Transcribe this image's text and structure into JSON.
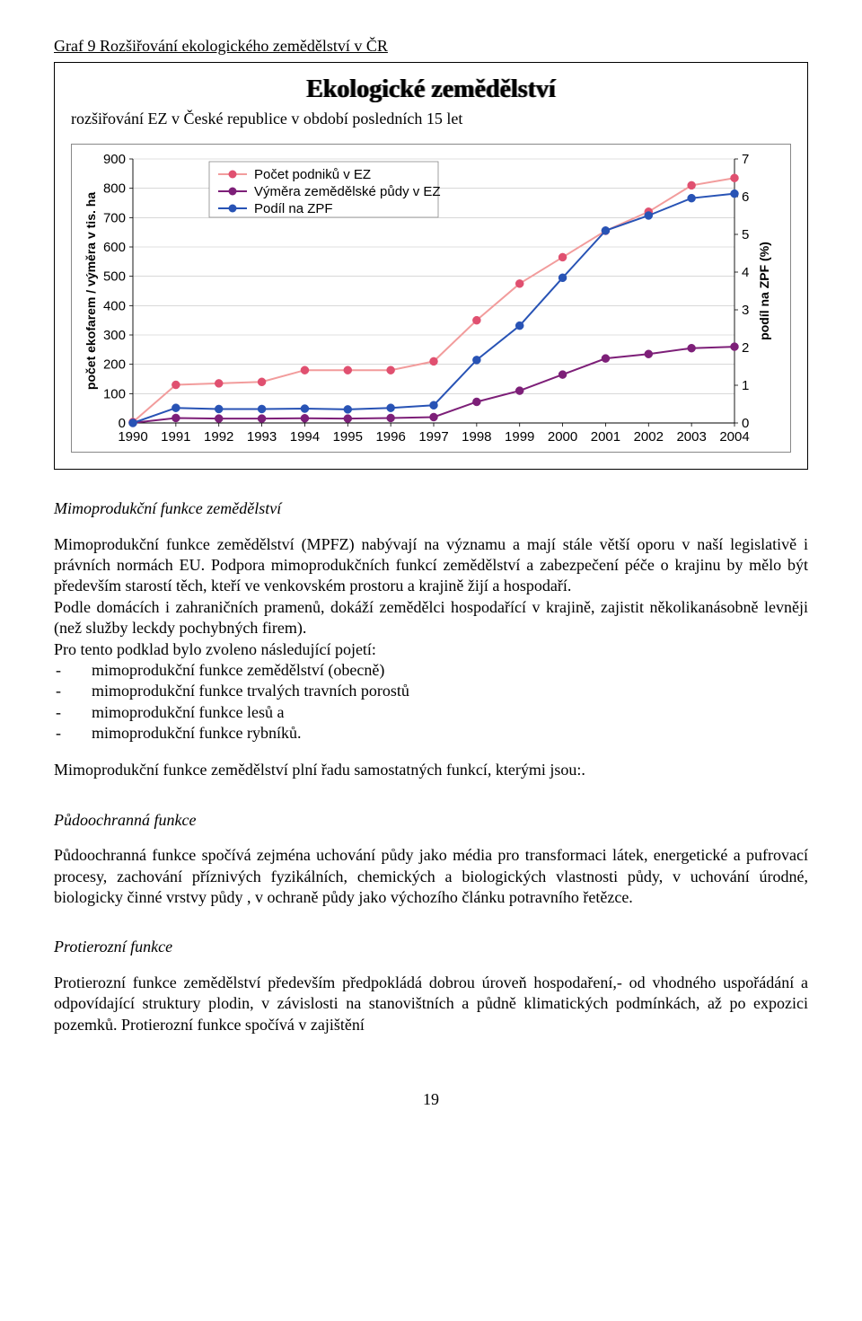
{
  "graf_title": "Graf 9 Rozšiřování ekologického zemědělství v ČR",
  "eko_title": "Ekologické zemědělství",
  "sub_title": "rozšiřování EZ v České republice v období posledních 15 let",
  "chart": {
    "type": "line",
    "y_label": "počet ekofarem / výměra v tis. ha",
    "y2_label": "podíl na ZPF (%)",
    "categories": [
      "1990",
      "1991",
      "1992",
      "1993",
      "1994",
      "1995",
      "1996",
      "1997",
      "1998",
      "1999",
      "2000",
      "2001",
      "2002",
      "2003",
      "2004"
    ],
    "ylim": [
      0,
      900
    ],
    "ytick_step": 100,
    "y2lim": [
      0,
      7
    ],
    "y2tick_step": 1,
    "series": [
      {
        "name": "Počet podniků v EZ",
        "axis": "left",
        "color": "#f29c9c",
        "marker_fill": "#e05070",
        "values": [
          3,
          130,
          135,
          140,
          180,
          180,
          180,
          210,
          350,
          475,
          565,
          655,
          720,
          810,
          835
        ]
      },
      {
        "name": "Výměra zemědělské půdy v EZ",
        "axis": "left",
        "color": "#7d1f78",
        "marker_fill": "#7d1f78",
        "values": [
          0.5,
          17,
          15,
          15,
          16,
          15,
          17,
          20,
          72,
          110,
          165,
          220,
          235,
          255,
          260
        ]
      },
      {
        "name": "Podíl na ZPF",
        "axis": "right",
        "color": "#2853b5",
        "marker_fill": "#2853b5",
        "values": [
          0.0,
          0.4,
          0.37,
          0.37,
          0.38,
          0.36,
          0.4,
          0.47,
          1.67,
          2.58,
          3.85,
          5.1,
          5.5,
          5.96,
          6.08
        ]
      }
    ],
    "legend_pos": "top-center",
    "background_color": "#ffffff",
    "grid_color": "#c0c0c0",
    "label_fontsize": 14,
    "tick_fontsize": 15,
    "line_width": 2,
    "marker_radius": 4.5
  },
  "heading1": "Mimoprodukční funkce zemědělství",
  "para1": "Mimoprodukční  funkce  zemědělství (MPFZ) nabývají na významu a mají stále větší oporu v naší legislativě i právních normách EU. Podpora mimoprodukčních funkcí zemědělství a zabezpečení péče o krajinu by mělo být především starostí těch, kteří ve venkovském prostoru a krajině žijí a hospodaří.",
  "para2": "Podle domácích i zahraničních pramenů, dokáží zemědělci hospodařící v krajině, zajistit několikanásobně levněji (než služby leckdy pochybných  firem).",
  "para3": "Pro tento podklad bylo zvoleno následující pojetí:",
  "bullets": [
    "mimoprodukční funkce zemědělství (obecně)",
    "mimoprodukční funkce trvalých travních porostů",
    "mimoprodukční funkce lesů a",
    "mimoprodukční funkce rybníků."
  ],
  "para4": "Mimoprodukční funkce zemědělství  plní řadu samostatných funkcí, kterými jsou:.",
  "heading2": "Půdoochranná funkce",
  "para5": "Půdoochranná funkce spočívá zejména uchování  půdy jako média pro transformaci látek, energetické a pufrovací procesy, zachování  příznivých fyzikálních, chemických a biologických vlastnosti půdy, v uchování úrodné, biologicky činné vrstvy půdy , v ochraně půdy jako výchozího článku potravního řetězce.",
  "heading3": "Protierozní funkce",
  "para6": "Protierozní funkce zemědělství především předpokládá dobrou úroveň hospodaření,- od vhodného uspořádání a odpovídající struktury plodin, v závislosti na stanovištních a půdně klimatických podmínkách, až po expozici pozemků. Protierozní funkce spočívá  v zajištění",
  "page_num": "19"
}
